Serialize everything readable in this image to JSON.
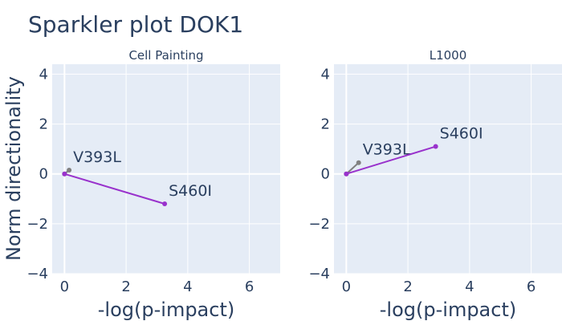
{
  "title": "Sparkler plot DOK1",
  "ylabel": "Norm directionality",
  "colors": {
    "plot_bg": "#e5ecf6",
    "grid": "#ffffff",
    "text": "#2a3f5f",
    "variant_gray": "#808080",
    "variant_purple": "#9932cc"
  },
  "chart_data": [
    {
      "type": "scatter",
      "title": "Cell Painting",
      "xlabel": "-log(p-impact)",
      "xlim": [
        -0.4,
        7
      ],
      "ylim": [
        -4,
        4.4
      ],
      "xticks": [
        0,
        2,
        4,
        6
      ],
      "yticks": [
        -4,
        -2,
        0,
        2,
        4
      ],
      "xtick_labels": [
        "0",
        "2",
        "4",
        "6"
      ],
      "ytick_labels": [
        "−4",
        "−2",
        "0",
        "2",
        "4"
      ],
      "grid": true,
      "series": [
        {
          "origin": [
            0,
            0
          ],
          "x": 0.15,
          "y": 0.15,
          "label": "V393L",
          "color": "#808080"
        },
        {
          "origin": [
            0,
            0
          ],
          "x": 3.25,
          "y": -1.2,
          "label": "S460I",
          "color": "#9932cc"
        }
      ]
    },
    {
      "type": "scatter",
      "title": "L1000",
      "xlabel": "-log(p-impact)",
      "xlim": [
        -0.4,
        7
      ],
      "ylim": [
        -4,
        4.4
      ],
      "xticks": [
        0,
        2,
        4,
        6
      ],
      "yticks": [
        -4,
        -2,
        0,
        2,
        4
      ],
      "xtick_labels": [
        "0",
        "2",
        "4",
        "6"
      ],
      "ytick_labels": [
        "−4",
        "−2",
        "0",
        "2",
        "4"
      ],
      "grid": true,
      "series": [
        {
          "origin": [
            0,
            0
          ],
          "x": 0.4,
          "y": 0.45,
          "label": "V393L",
          "color": "#808080"
        },
        {
          "origin": [
            0,
            0
          ],
          "x": 2.9,
          "y": 1.1,
          "label": "S460I",
          "color": "#9932cc"
        }
      ]
    }
  ]
}
